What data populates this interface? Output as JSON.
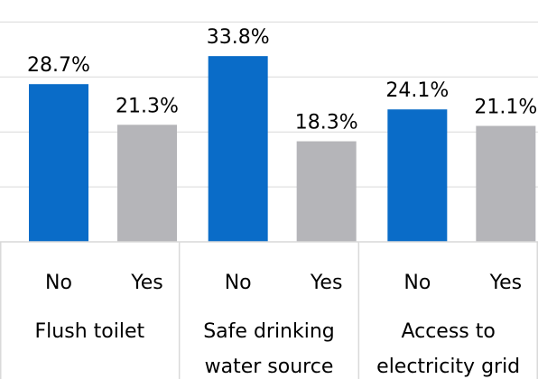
{
  "chart_data": {
    "type": "bar",
    "groups": [
      {
        "label_lines": [
          "Flush toilet"
        ],
        "bars": [
          {
            "category": "No",
            "value": 28.7,
            "label": "28.7%"
          },
          {
            "category": "Yes",
            "value": 21.3,
            "label": "21.3%"
          }
        ]
      },
      {
        "label_lines": [
          "Safe drinking",
          "water source"
        ],
        "bars": [
          {
            "category": "No",
            "value": 33.8,
            "label": "33.8%"
          },
          {
            "category": "Yes",
            "value": 18.3,
            "label": "18.3%"
          }
        ]
      },
      {
        "label_lines": [
          "Access to",
          "electricity grid"
        ],
        "bars": [
          {
            "category": "No",
            "value": 24.1,
            "label": "24.1%"
          },
          {
            "category": "Yes",
            "value": 21.1,
            "label": "21.1%"
          }
        ]
      }
    ],
    "colors": {
      "No": "#0a6cc8",
      "Yes": "#b5b5b9"
    },
    "ylim": [
      0,
      40
    ],
    "gridlines": [
      10,
      20,
      30,
      40
    ],
    "grid": true,
    "legend": "none",
    "title": "",
    "xlabel": "",
    "ylabel": ""
  }
}
